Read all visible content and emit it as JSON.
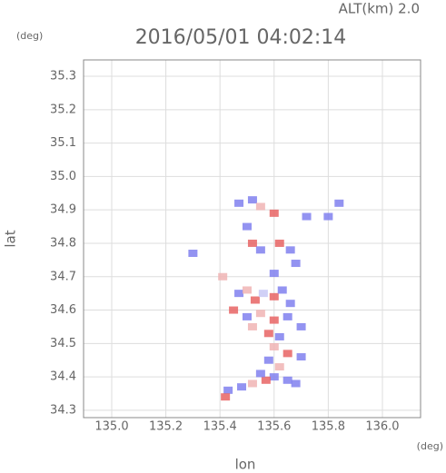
{
  "chart_data": {
    "type": "scatter",
    "title": "2016/05/01 04:02:14",
    "altitude_label": "ALT(km) 2.0",
    "y_unit": "(deg)",
    "x_unit": "(deg)",
    "x_label": "lon",
    "y_label": "lat",
    "xlim": [
      134.896,
      136.141
    ],
    "ylim": [
      34.278,
      35.349
    ],
    "xticks": [
      {
        "value": 135,
        "label": "135.0"
      },
      135.2,
      135.4,
      135.6,
      135.8,
      {
        "value": 136,
        "label": "136.0"
      }
    ],
    "yticks": [
      34.3,
      34.4,
      34.5,
      34.6,
      34.7,
      34.8,
      34.9,
      {
        "value": 35,
        "label": "35.0"
      },
      35.1,
      35.2,
      35.3
    ],
    "grid": true,
    "x": [
      135.47,
      135.52,
      135.55,
      135.6,
      135.72,
      135.8,
      135.84,
      135.5,
      135.52,
      135.55,
      135.62,
      135.66,
      135.68,
      135.3,
      135.41,
      135.6,
      135.47,
      135.5,
      135.53,
      135.56,
      135.6,
      135.63,
      135.66,
      135.45,
      135.5,
      135.55,
      135.6,
      135.65,
      135.52,
      135.58,
      135.62,
      135.7,
      135.6,
      135.65,
      135.58,
      135.62,
      135.7,
      135.6,
      135.57,
      135.65,
      135.52,
      135.48,
      135.43,
      135.42,
      135.55,
      135.68
    ],
    "y": [
      34.92,
      34.93,
      34.91,
      34.89,
      34.88,
      34.88,
      34.92,
      34.85,
      34.8,
      34.78,
      34.8,
      34.78,
      34.74,
      34.77,
      34.7,
      34.71,
      34.65,
      34.66,
      34.63,
      34.65,
      34.64,
      34.66,
      34.62,
      34.6,
      34.58,
      34.59,
      34.57,
      34.58,
      34.55,
      34.53,
      34.52,
      34.55,
      34.49,
      34.47,
      34.45,
      34.43,
      34.46,
      34.4,
      34.39,
      34.39,
      34.38,
      34.37,
      34.36,
      34.34,
      34.41,
      34.38
    ],
    "colors": [
      "#8080ee",
      "#8080ee",
      "#f0b4b4",
      "#e86464",
      "#8080ee",
      "#8080ee",
      "#8080ee",
      "#8080ee",
      "#e86464",
      "#8080ee",
      "#e86464",
      "#8080ee",
      "#8080ee",
      "#8080ee",
      "#f0b4b4",
      "#8080ee",
      "#8080ee",
      "#f0b4b4",
      "#e86464",
      "#c8c8f5",
      "#e86464",
      "#8080ee",
      "#8080ee",
      "#e86464",
      "#8080ee",
      "#f0b4b4",
      "#e86464",
      "#8080ee",
      "#f0b4b4",
      "#e86464",
      "#8080ee",
      "#8080ee",
      "#f0b4b4",
      "#e86464",
      "#8080ee",
      "#f0b4b4",
      "#8080ee",
      "#8080ee",
      "#e86464",
      "#8080ee",
      "#f0b4b4",
      "#8080ee",
      "#8080ee",
      "#e86464",
      "#8080ee",
      "#8080ee"
    ]
  }
}
